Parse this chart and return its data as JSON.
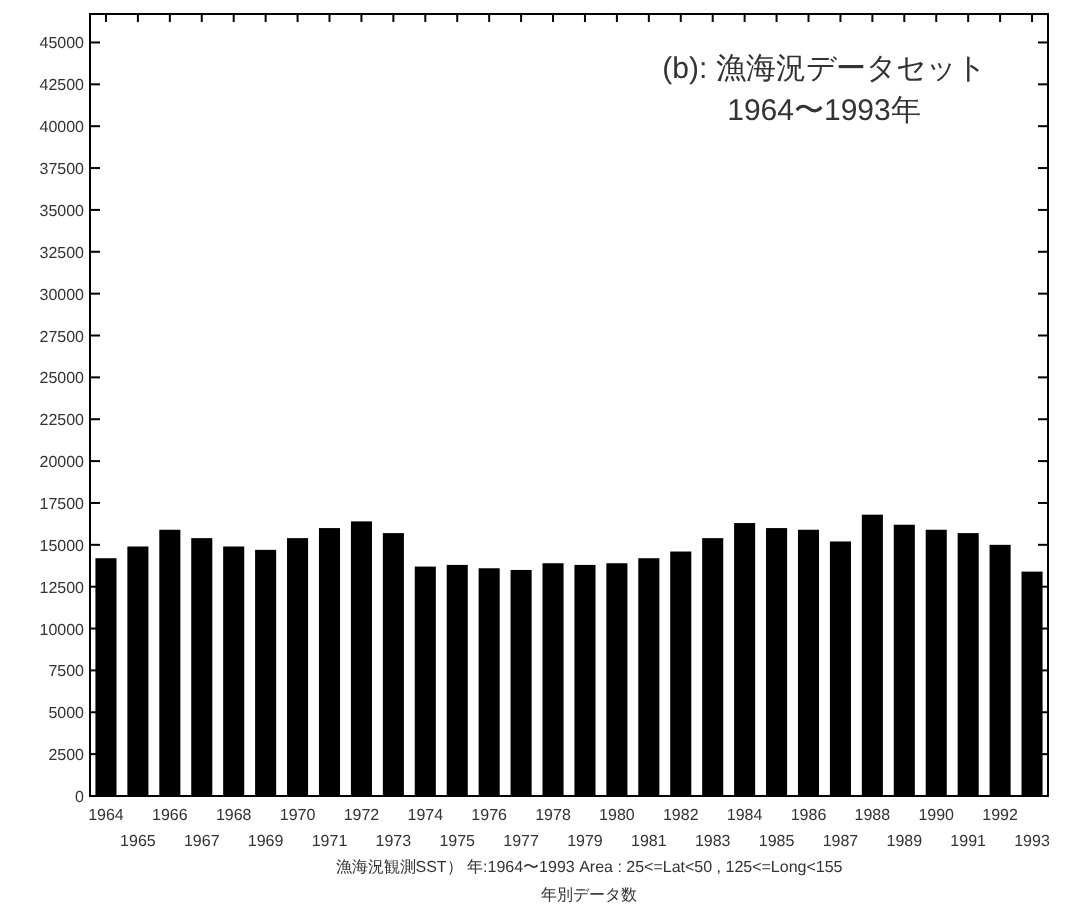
{
  "chart_data": {
    "type": "bar",
    "categories": [
      "1964",
      "1965",
      "1966",
      "1967",
      "1968",
      "1969",
      "1970",
      "1971",
      "1972",
      "1973",
      "1974",
      "1975",
      "1976",
      "1977",
      "1978",
      "1979",
      "1980",
      "1981",
      "1982",
      "1983",
      "1984",
      "1985",
      "1986",
      "1987",
      "1988",
      "1989",
      "1990",
      "1991",
      "1992",
      "1993"
    ],
    "values": [
      14200,
      14900,
      15900,
      15400,
      14900,
      14700,
      15400,
      16000,
      16400,
      15700,
      13700,
      13800,
      13600,
      13500,
      13900,
      13800,
      13900,
      14200,
      14600,
      15400,
      16300,
      16000,
      15900,
      15200,
      16800,
      16200,
      15900,
      15700,
      15000,
      13400
    ],
    "color": "#000000",
    "ylim": [
      0,
      46700
    ],
    "yticks": [
      0,
      2500,
      5000,
      7500,
      10000,
      12500,
      15000,
      17500,
      20000,
      22500,
      25000,
      27500,
      30000,
      32500,
      35000,
      37500,
      40000,
      42500,
      45000
    ],
    "xlabel": "漁海況観測SST） 年:1964〜1993   Area : 25<=Lat<50 , 125<=Long<155",
    "annotations": [
      "(b): 漁海況データセット",
      "1964〜1993年",
      "年別データ数"
    ],
    "grid": false
  }
}
